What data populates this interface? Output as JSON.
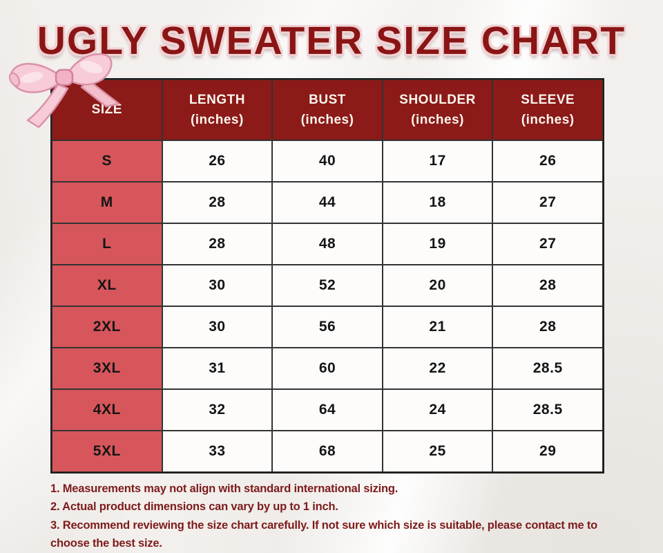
{
  "page": {
    "title": "UGLY SWEATER SIZE CHART"
  },
  "chart_data": {
    "type": "table",
    "title": "UGLY SWEATER SIZE CHART",
    "columns": [
      {
        "label": "SIZE",
        "unit": ""
      },
      {
        "label": "LENGTH",
        "unit": "(inches)"
      },
      {
        "label": "BUST",
        "unit": "(inches)"
      },
      {
        "label": "SHOULDER",
        "unit": "(inches)"
      },
      {
        "label": "SLEEVE",
        "unit": "(inches)"
      }
    ],
    "rows": [
      [
        "S",
        "26",
        "40",
        "17",
        "26"
      ],
      [
        "M",
        "28",
        "44",
        "18",
        "27"
      ],
      [
        "L",
        "28",
        "48",
        "19",
        "27"
      ],
      [
        "XL",
        "30",
        "52",
        "20",
        "28"
      ],
      [
        "2XL",
        "30",
        "56",
        "21",
        "28"
      ],
      [
        "3XL",
        "31",
        "60",
        "22",
        "28.5"
      ],
      [
        "4XL",
        "32",
        "64",
        "24",
        "28.5"
      ],
      [
        "5XL",
        "33",
        "68",
        "25",
        "29"
      ]
    ]
  },
  "notes": {
    "items": [
      "1. Measurements may not align with standard international sizing.",
      "2. Actual product dimensions can vary by up to 1 inch.",
      "3. Recommend reviewing the size chart carefully. If not sure which size is suitable, please contact me to choose the best size."
    ]
  },
  "icons": {
    "bow": "ribbon-bow-icon"
  },
  "colors": {
    "header_bg": "#8B1A18",
    "header_text": "#FAF5EE",
    "size_column_bg": "#D6565B",
    "title_text": "#8A1515",
    "title_outline": "#F0D2D4",
    "note_text": "#7C1B1B",
    "cell_text": "#151515",
    "table_border": "#1D1D1D",
    "background": "#F2EFEC",
    "bow_pink": "#F7CBD7"
  }
}
